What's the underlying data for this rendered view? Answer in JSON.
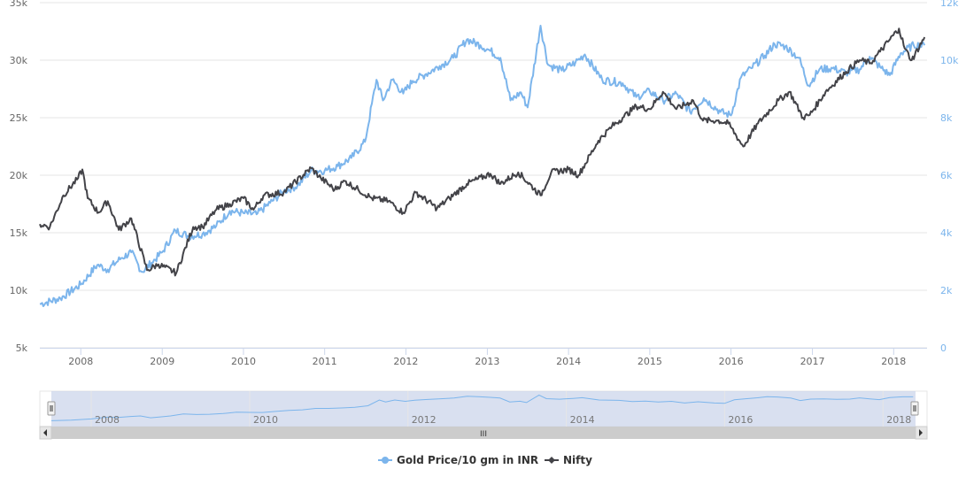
{
  "chart_data": {
    "type": "line",
    "x_type": "date",
    "xlim": [
      "2007-07-01",
      "2018-05-31"
    ],
    "x_ticks": [
      "2008",
      "2009",
      "2010",
      "2011",
      "2012",
      "2013",
      "2014",
      "2015",
      "2016",
      "2017",
      "2018"
    ],
    "y_left": {
      "ticks": [
        "5k",
        "10k",
        "15k",
        "20k",
        "25k",
        "30k",
        "35k"
      ],
      "ylim": [
        5000,
        35000
      ]
    },
    "y_right": {
      "ticks": [
        "0",
        "2k",
        "4k",
        "6k",
        "8k",
        "10k",
        "12k"
      ],
      "ylim": [
        0,
        12000
      ]
    },
    "grid": true,
    "legend_position": "bottom-center",
    "series": [
      {
        "name": "Gold Price/10 gm in INR",
        "axis": "left",
        "color": "#7cb5ec",
        "points": [
          [
            "2007-07-01",
            8800
          ],
          [
            "2007-10-01",
            9300
          ],
          [
            "2008-01-01",
            10500
          ],
          [
            "2008-03-15",
            12200
          ],
          [
            "2008-05-01",
            11800
          ],
          [
            "2008-07-01",
            12800
          ],
          [
            "2008-08-15",
            13300
          ],
          [
            "2008-10-01",
            11600
          ],
          [
            "2008-11-15",
            12400
          ],
          [
            "2009-01-01",
            13300
          ],
          [
            "2009-03-01",
            15200
          ],
          [
            "2009-05-01",
            14700
          ],
          [
            "2009-07-01",
            14900
          ],
          [
            "2009-09-01",
            15600
          ],
          [
            "2009-11-01",
            16900
          ],
          [
            "2010-01-01",
            16700
          ],
          [
            "2010-03-01",
            16600
          ],
          [
            "2010-05-01",
            17600
          ],
          [
            "2010-07-01",
            18600
          ],
          [
            "2010-09-01",
            19100
          ],
          [
            "2010-11-01",
            20400
          ],
          [
            "2011-01-01",
            20400
          ],
          [
            "2011-03-01",
            20800
          ],
          [
            "2011-05-01",
            21500
          ],
          [
            "2011-07-01",
            22900
          ],
          [
            "2011-08-22",
            28300
          ],
          [
            "2011-09-20",
            26500
          ],
          [
            "2011-11-01",
            28300
          ],
          [
            "2011-12-20",
            27100
          ],
          [
            "2012-02-01",
            28200
          ],
          [
            "2012-04-01",
            28800
          ],
          [
            "2012-06-01",
            29500
          ],
          [
            "2012-08-01",
            30200
          ],
          [
            "2012-10-01",
            31800
          ],
          [
            "2012-12-01",
            31300
          ],
          [
            "2013-01-15",
            30800
          ],
          [
            "2013-03-01",
            30200
          ],
          [
            "2013-04-15",
            26500
          ],
          [
            "2013-06-01",
            27200
          ],
          [
            "2013-07-01",
            25900
          ],
          [
            "2013-08-28",
            33000
          ],
          [
            "2013-10-01",
            29600
          ],
          [
            "2013-12-01",
            29100
          ],
          [
            "2014-02-01",
            29800
          ],
          [
            "2014-03-15",
            30500
          ],
          [
            "2014-06-01",
            28300
          ],
          [
            "2014-09-01",
            28000
          ],
          [
            "2014-11-01",
            26800
          ],
          [
            "2015-01-01",
            27300
          ],
          [
            "2015-03-01",
            26500
          ],
          [
            "2015-05-01",
            27100
          ],
          [
            "2015-07-01",
            25500
          ],
          [
            "2015-09-01",
            26700
          ],
          [
            "2015-11-15",
            25500
          ],
          [
            "2016-01-01",
            25200
          ],
          [
            "2016-02-15",
            28500
          ],
          [
            "2016-04-01",
            29300
          ],
          [
            "2016-06-01",
            30400
          ],
          [
            "2016-07-15",
            31400
          ],
          [
            "2016-09-01",
            31200
          ],
          [
            "2016-11-01",
            30200
          ],
          [
            "2016-12-15",
            27800
          ],
          [
            "2017-02-01",
            29200
          ],
          [
            "2017-04-01",
            29300
          ],
          [
            "2017-06-01",
            28900
          ],
          [
            "2017-08-01",
            29200
          ],
          [
            "2017-09-15",
            30300
          ],
          [
            "2017-11-01",
            29400
          ],
          [
            "2017-12-15",
            28700
          ],
          [
            "2018-02-01",
            30600
          ],
          [
            "2018-04-01",
            31300
          ],
          [
            "2018-05-20",
            31300
          ]
        ]
      },
      {
        "name": "Nifty",
        "axis": "right",
        "color": "#434348",
        "points": [
          [
            "2007-07-01",
            4300
          ],
          [
            "2007-08-15",
            4200
          ],
          [
            "2007-10-15",
            5300
          ],
          [
            "2007-12-20",
            5900
          ],
          [
            "2008-01-08",
            6200
          ],
          [
            "2008-02-01",
            5200
          ],
          [
            "2008-03-20",
            4700
          ],
          [
            "2008-05-01",
            5100
          ],
          [
            "2008-06-20",
            4100
          ],
          [
            "2008-08-15",
            4500
          ],
          [
            "2008-10-25",
            2700
          ],
          [
            "2008-12-15",
            2900
          ],
          [
            "2009-03-05",
            2600
          ],
          [
            "2009-05-20",
            4200
          ],
          [
            "2009-07-01",
            4200
          ],
          [
            "2009-09-01",
            4800
          ],
          [
            "2009-11-01",
            5000
          ],
          [
            "2010-01-01",
            5200
          ],
          [
            "2010-02-15",
            4800
          ],
          [
            "2010-04-01",
            5300
          ],
          [
            "2010-07-01",
            5400
          ],
          [
            "2010-11-01",
            6250
          ],
          [
            "2010-12-15",
            5900
          ],
          [
            "2011-02-15",
            5500
          ],
          [
            "2011-04-01",
            5800
          ],
          [
            "2011-06-01",
            5500
          ],
          [
            "2011-08-01",
            5200
          ],
          [
            "2011-10-15",
            5100
          ],
          [
            "2011-12-20",
            4700
          ],
          [
            "2012-02-15",
            5400
          ],
          [
            "2012-05-20",
            4850
          ],
          [
            "2012-07-15",
            5200
          ],
          [
            "2012-10-01",
            5700
          ],
          [
            "2013-01-15",
            6050
          ],
          [
            "2013-03-01",
            5700
          ],
          [
            "2013-05-20",
            6100
          ],
          [
            "2013-08-28",
            5300
          ],
          [
            "2013-10-15",
            6100
          ],
          [
            "2014-01-01",
            6200
          ],
          [
            "2014-02-15",
            6000
          ],
          [
            "2014-05-15",
            7200
          ],
          [
            "2014-07-15",
            7700
          ],
          [
            "2014-09-01",
            8000
          ],
          [
            "2014-11-01",
            8400
          ],
          [
            "2015-01-01",
            8300
          ],
          [
            "2015-03-01",
            8900
          ],
          [
            "2015-05-01",
            8300
          ],
          [
            "2015-07-15",
            8600
          ],
          [
            "2015-08-28",
            7900
          ],
          [
            "2015-11-01",
            7900
          ],
          [
            "2015-12-20",
            7800
          ],
          [
            "2016-02-25",
            7000
          ],
          [
            "2016-05-01",
            7800
          ],
          [
            "2016-08-01",
            8600
          ],
          [
            "2016-09-20",
            8900
          ],
          [
            "2016-11-20",
            8000
          ],
          [
            "2016-12-20",
            8100
          ],
          [
            "2017-03-01",
            8900
          ],
          [
            "2017-06-01",
            9600
          ],
          [
            "2017-08-01",
            10000
          ],
          [
            "2017-09-20",
            9900
          ],
          [
            "2017-11-01",
            10300
          ],
          [
            "2018-01-25",
            11100
          ],
          [
            "2018-02-20",
            10400
          ],
          [
            "2018-03-23",
            10000
          ],
          [
            "2018-05-20",
            10800
          ]
        ]
      }
    ]
  },
  "navigator": {
    "labels": [
      "2008",
      "2010",
      "2012",
      "2014",
      "2016",
      "2018"
    ],
    "handle_glyph": "III"
  },
  "legend": {
    "items": [
      {
        "label": "Gold Price/10 gm in INR",
        "color": "#7cb5ec"
      },
      {
        "label": "Nifty",
        "color": "#434348"
      }
    ]
  },
  "colors": {
    "grid": "#e6e6e6",
    "axis_right_text": "#7cb5ec",
    "navigator_fill": "#ccd6eb",
    "scrollbar_track": "#f2f2f2",
    "scrollbar_thumb": "#cccccc"
  }
}
